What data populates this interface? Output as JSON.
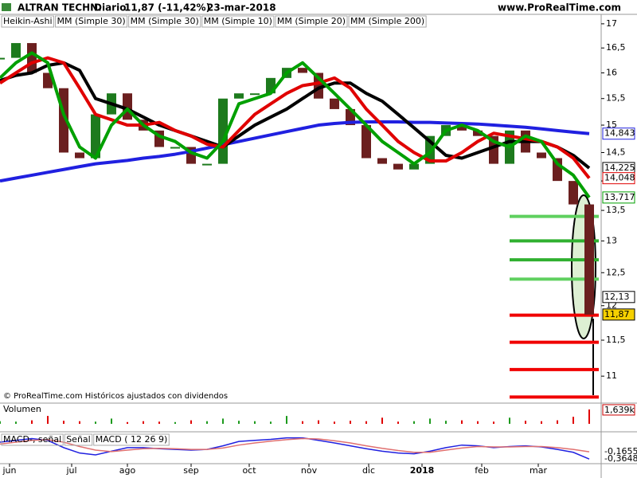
{
  "header": {
    "symbol": "ALTRAN TECHN.",
    "period": "Diario",
    "quote": "11,87 (-11,42%)",
    "date": "23-mar-2018",
    "site": "www.ProRealTime.com"
  },
  "footer": "© ProRealTime.com Históricos ajustados con dividendos",
  "chart_data": [
    {
      "type": "candlestick",
      "log_scale": true,
      "legend": [
        {
          "label": "Heikin-Ashi",
          "color": "#000000"
        },
        {
          "label": "MM (Simple 30)",
          "color": "#000000"
        },
        {
          "label": "MM (Simple 30)",
          "color": "#000000"
        },
        {
          "label": "MM (Simple 10)",
          "color": "#00a000"
        },
        {
          "label": "MM (Simple 20)",
          "color": "#e00000"
        },
        {
          "label": "MM (Simple 200)",
          "color": "#2020e0"
        }
      ],
      "x": [
        0,
        1,
        2,
        3,
        4,
        5,
        6,
        7,
        8,
        9,
        10,
        11,
        12,
        13,
        14,
        15,
        16,
        17,
        18,
        19,
        20,
        21,
        22,
        23,
        24,
        25,
        26,
        27,
        28,
        29,
        30,
        31,
        32,
        33,
        34,
        35,
        36,
        37
      ],
      "xlim": [
        0,
        37.75
      ],
      "xticks": [
        {
          "value": 0.6,
          "label": "jun"
        },
        {
          "value": 4.5,
          "label": "jul"
        },
        {
          "value": 8,
          "label": "ago"
        },
        {
          "value": 12,
          "label": "sep"
        },
        {
          "value": 15.65,
          "label": "oct"
        },
        {
          "value": 19.4,
          "label": "nov"
        },
        {
          "value": 23.15,
          "label": "dic"
        },
        {
          "value": 26.5,
          "label": "2018"
        },
        {
          "value": 30.25,
          "label": "feb"
        },
        {
          "value": 33.8,
          "label": "mar"
        }
      ],
      "ylim": [
        10.65,
        17.2
      ],
      "yticks": [
        17,
        {
          "value": 16.5,
          "label": "16,5"
        },
        16,
        {
          "value": 15.5,
          "label": "15,5"
        },
        15,
        {
          "value": 14.5,
          "label": "14,5"
        },
        14,
        {
          "value": 13.5,
          "label": "13,5"
        },
        13,
        {
          "value": 12.5,
          "label": "12,5"
        },
        12,
        {
          "value": 11.5,
          "label": "11,5"
        },
        11
      ],
      "up_color": "#1d7a1d",
      "down_color": "#6b1f1f",
      "values": [
        16.3,
        16.6,
        16.0,
        15.7,
        14.5,
        14.4,
        15.2,
        15.6,
        15.1,
        14.9,
        14.6,
        14.6,
        14.3,
        14.3,
        15.5,
        15.6,
        15.6,
        15.9,
        16.1,
        16.0,
        15.5,
        15.3,
        15.0,
        14.4,
        14.3,
        14.2,
        14.3,
        14.8,
        15.0,
        14.9,
        14.8,
        14.3,
        14.9,
        14.5,
        14.4,
        14.0,
        13.6,
        11.87
      ],
      "series": [
        {
          "name": "MM (Simple 200)",
          "color": "#2020e0",
          "values": [
            14.0,
            14.05,
            14.1,
            14.15,
            14.2,
            14.25,
            14.3,
            14.33,
            14.36,
            14.4,
            14.43,
            14.47,
            14.52,
            14.58,
            14.64,
            14.7,
            14.76,
            14.82,
            14.88,
            14.94,
            15.0,
            15.03,
            15.05,
            15.06,
            15.06,
            15.06,
            15.05,
            15.05,
            15.04,
            15.03,
            15.02,
            15.0,
            14.98,
            14.96,
            14.93,
            14.9,
            14.87,
            14.843
          ]
        },
        {
          "name": "MM (Simple 30)",
          "color": "#000000",
          "values": [
            15.85,
            15.95,
            16.0,
            16.15,
            16.2,
            16.05,
            15.5,
            15.4,
            15.3,
            15.15,
            15.0,
            14.9,
            14.8,
            14.7,
            14.6,
            14.8,
            15.0,
            15.15,
            15.3,
            15.5,
            15.7,
            15.8,
            15.8,
            15.6,
            15.45,
            15.2,
            14.95,
            14.7,
            14.45,
            14.4,
            14.5,
            14.6,
            14.7,
            14.7,
            14.7,
            14.6,
            14.45,
            14.225
          ]
        },
        {
          "name": "MM (Simple 20)",
          "color": "#e00000",
          "values": [
            15.8,
            16.0,
            16.2,
            16.3,
            16.2,
            15.7,
            15.2,
            15.1,
            15.0,
            15.0,
            15.05,
            14.9,
            14.8,
            14.65,
            14.6,
            14.9,
            15.2,
            15.4,
            15.6,
            15.75,
            15.8,
            15.9,
            15.7,
            15.3,
            15.0,
            14.7,
            14.5,
            14.35,
            14.35,
            14.5,
            14.7,
            14.85,
            14.8,
            14.75,
            14.7,
            14.6,
            14.4,
            14.048
          ]
        },
        {
          "name": "MM (Simple 10)",
          "color": "#00a000",
          "values": [
            15.9,
            16.2,
            16.4,
            16.2,
            15.2,
            14.6,
            14.4,
            15.0,
            15.3,
            15.0,
            14.8,
            14.7,
            14.5,
            14.4,
            14.7,
            15.4,
            15.5,
            15.6,
            16.0,
            16.2,
            15.9,
            15.6,
            15.3,
            15.0,
            14.7,
            14.5,
            14.3,
            14.5,
            14.9,
            15.0,
            14.9,
            14.7,
            14.6,
            14.8,
            14.7,
            14.3,
            14.1,
            13.717
          ]
        }
      ],
      "last_labels": [
        {
          "value": 14.843,
          "label": "14,843",
          "color": "#2020e0"
        },
        {
          "value": 14.225,
          "label": "14,225",
          "color": "#000000"
        },
        {
          "value": 14.048,
          "label": "14,048",
          "color": "#e00000"
        },
        {
          "value": 13.717,
          "label": "13,717",
          "color": "#00a000"
        },
        {
          "value": 12.13,
          "label": "12,13",
          "color": "#000000"
        },
        {
          "value": 11.87,
          "label": "11,87",
          "color": "#000000",
          "background": "#f5d000"
        }
      ],
      "levels": [
        {
          "value": 13.4,
          "color": "#5fd05f"
        },
        {
          "value": 13.0,
          "color": "#30b030"
        },
        {
          "value": 12.7,
          "color": "#30b030"
        },
        {
          "value": 12.4,
          "color": "#5fd05f"
        },
        {
          "value": 11.86,
          "color": "#f00000"
        },
        {
          "value": 11.47,
          "color": "#f00000"
        },
        {
          "value": 11.09,
          "color": "#f00000"
        },
        {
          "value": 10.72,
          "color": "#f00000"
        }
      ]
    },
    {
      "type": "bar",
      "title": "Volumen",
      "ylim": [
        0,
        2000
      ],
      "up_color": "#1d9a1d",
      "down_color": "#e00000",
      "values": [
        300,
        250,
        400,
        900,
        350,
        300,
        250,
        600,
        200,
        300,
        250,
        200,
        400,
        300,
        600,
        350,
        300,
        250,
        900,
        300,
        400,
        250,
        350,
        300,
        700,
        250,
        300,
        600,
        350,
        400,
        300,
        250,
        700,
        350,
        300,
        400,
        800,
        1639
      ],
      "value_label": {
        "value": 1639,
        "label": "1,639k"
      }
    },
    {
      "type": "line",
      "legend": [
        "MACD-, señal",
        "Señal",
        "MACD ( 12 26 9)"
      ],
      "ylim": [
        -0.45,
        0.3
      ],
      "series": [
        {
          "name": "MACD",
          "color": "#2020e0",
          "values": [
            0.1,
            0.15,
            0.2,
            0.15,
            -0.05,
            -0.2,
            -0.25,
            -0.15,
            -0.05,
            -0.05,
            -0.08,
            -0.1,
            -0.12,
            -0.1,
            0.0,
            0.12,
            0.15,
            0.18,
            0.22,
            0.22,
            0.15,
            0.08,
            0.0,
            -0.08,
            -0.15,
            -0.2,
            -0.22,
            -0.15,
            -0.05,
            0.02,
            0.0,
            -0.05,
            -0.02,
            0.0,
            -0.03,
            -0.1,
            -0.18,
            -0.3648
          ],
          "value_label": "-0,3648"
        },
        {
          "name": "Señal",
          "color": "#e07070",
          "values": [
            0.05,
            0.1,
            0.15,
            0.17,
            0.1,
            -0.02,
            -0.12,
            -0.16,
            -0.12,
            -0.08,
            -0.07,
            -0.08,
            -0.1,
            -0.1,
            -0.06,
            0.02,
            0.08,
            0.13,
            0.17,
            0.2,
            0.19,
            0.14,
            0.08,
            0.0,
            -0.07,
            -0.13,
            -0.18,
            -0.18,
            -0.12,
            -0.06,
            -0.02,
            -0.03,
            -0.03,
            -0.02,
            -0.02,
            -0.05,
            -0.1,
            -0.1655
          ],
          "value_label": "-0,1655"
        }
      ]
    }
  ]
}
